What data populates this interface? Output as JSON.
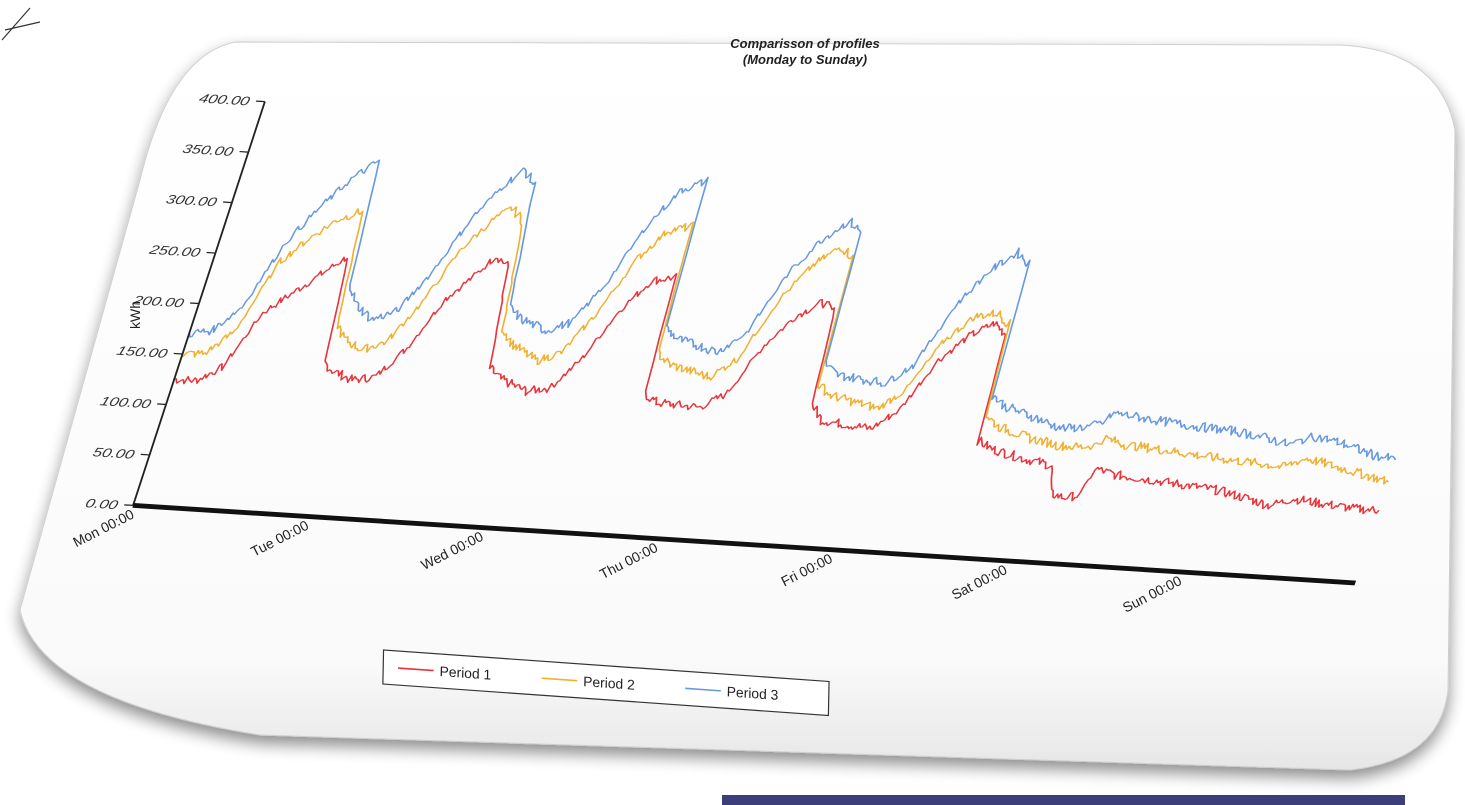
{
  "chart_data": {
    "type": "line",
    "title": "Comparisson of profiles",
    "subtitle": "(Monday to Sunday)",
    "ylabel": "kWh",
    "xlabel": "",
    "ylim": [
      0,
      400
    ],
    "xlim": [
      0,
      168
    ],
    "x_unit": "hours from Mon 00:00",
    "y_ticks": [
      "0.00",
      "50.00",
      "100.00",
      "150.00",
      "200.00",
      "250.00",
      "300.00",
      "350.00",
      "400.00"
    ],
    "x_ticks": [
      "Mon 00:00",
      "Tue 00:00",
      "Wed 00:00",
      "Thu 00:00",
      "Fri 00:00",
      "Sat 00:00",
      "Sun 00:00"
    ],
    "legend_position": "bottom",
    "grid": false,
    "series": [
      {
        "name": "Period 1",
        "color": "#e8343a",
        "points": [
          [
            0,
            125
          ],
          [
            3,
            125
          ],
          [
            6,
            140
          ],
          [
            9,
            195
          ],
          [
            12,
            215
          ],
          [
            15,
            235
          ],
          [
            18,
            255
          ],
          [
            19.5,
            150
          ],
          [
            21,
            143
          ],
          [
            24,
            135
          ],
          [
            27,
            140
          ],
          [
            30,
            170
          ],
          [
            33,
            220
          ],
          [
            36,
            245
          ],
          [
            38,
            265
          ],
          [
            40,
            255
          ],
          [
            42,
            155
          ],
          [
            44,
            145
          ],
          [
            48,
            135
          ],
          [
            51,
            140
          ],
          [
            54,
            170
          ],
          [
            57,
            220
          ],
          [
            60,
            250
          ],
          [
            63,
            255
          ],
          [
            64,
            140
          ],
          [
            66,
            132
          ],
          [
            72,
            130
          ],
          [
            75,
            145
          ],
          [
            78,
            195
          ],
          [
            81,
            225
          ],
          [
            84,
            240
          ],
          [
            86,
            230
          ],
          [
            87,
            140
          ],
          [
            89,
            125
          ],
          [
            96,
            120
          ],
          [
            99,
            140
          ],
          [
            102,
            190
          ],
          [
            105,
            215
          ],
          [
            108,
            230
          ],
          [
            110,
            220
          ],
          [
            111,
            115
          ],
          [
            113,
            108
          ],
          [
            118,
            100
          ],
          [
            120,
            98
          ],
          [
            122,
            95
          ],
          [
            123,
            68
          ],
          [
            125,
            65
          ],
          [
            127,
            68
          ],
          [
            128,
            95
          ],
          [
            131,
            90
          ],
          [
            135,
            88
          ],
          [
            140,
            85
          ],
          [
            145,
            82
          ],
          [
            150,
            75
          ],
          [
            153,
            70
          ],
          [
            156,
            78
          ],
          [
            160,
            75
          ],
          [
            165,
            72
          ],
          [
            168,
            72
          ]
        ]
      },
      {
        "name": "Period 2",
        "color": "#f0b030",
        "points": [
          [
            0,
            150
          ],
          [
            3,
            152
          ],
          [
            6,
            175
          ],
          [
            9,
            245
          ],
          [
            12,
            270
          ],
          [
            15,
            290
          ],
          [
            18,
            300
          ],
          [
            19.5,
            190
          ],
          [
            21,
            175
          ],
          [
            24,
            165
          ],
          [
            27,
            175
          ],
          [
            30,
            215
          ],
          [
            33,
            270
          ],
          [
            36,
            300
          ],
          [
            38,
            312
          ],
          [
            40,
            300
          ],
          [
            42,
            195
          ],
          [
            44,
            180
          ],
          [
            48,
            165
          ],
          [
            51,
            175
          ],
          [
            54,
            215
          ],
          [
            57,
            270
          ],
          [
            60,
            300
          ],
          [
            63,
            305
          ],
          [
            64,
            180
          ],
          [
            66,
            170
          ],
          [
            72,
            160
          ],
          [
            75,
            180
          ],
          [
            78,
            240
          ],
          [
            81,
            275
          ],
          [
            84,
            295
          ],
          [
            86,
            285
          ],
          [
            87,
            160
          ],
          [
            89,
            150
          ],
          [
            96,
            140
          ],
          [
            99,
            160
          ],
          [
            102,
            210
          ],
          [
            105,
            235
          ],
          [
            108,
            240
          ],
          [
            110,
            230
          ],
          [
            111,
            140
          ],
          [
            113,
            130
          ],
          [
            118,
            120
          ],
          [
            120,
            118
          ],
          [
            122,
            115
          ],
          [
            125,
            115
          ],
          [
            127,
            118
          ],
          [
            128,
            125
          ],
          [
            131,
            120
          ],
          [
            135,
            118
          ],
          [
            140,
            115
          ],
          [
            145,
            112
          ],
          [
            150,
            110
          ],
          [
            153,
            108
          ],
          [
            156,
            118
          ],
          [
            160,
            112
          ],
          [
            165,
            105
          ],
          [
            168,
            100
          ]
        ]
      },
      {
        "name": "Period 3",
        "color": "#6699e0",
        "points": [
          [
            0,
            170
          ],
          [
            3,
            175
          ],
          [
            6,
            200
          ],
          [
            9,
            265
          ],
          [
            12,
            300
          ],
          [
            15,
            330
          ],
          [
            18,
            350
          ],
          [
            19.5,
            230
          ],
          [
            21,
            210
          ],
          [
            24,
            195
          ],
          [
            27,
            205
          ],
          [
            30,
            245
          ],
          [
            33,
            300
          ],
          [
            36,
            335
          ],
          [
            38,
            350
          ],
          [
            40,
            335
          ],
          [
            42,
            215
          ],
          [
            44,
            205
          ],
          [
            48,
            195
          ],
          [
            51,
            205
          ],
          [
            54,
            245
          ],
          [
            57,
            305
          ],
          [
            60,
            340
          ],
          [
            63,
            350
          ],
          [
            64,
            205
          ],
          [
            66,
            195
          ],
          [
            72,
            185
          ],
          [
            75,
            205
          ],
          [
            78,
            265
          ],
          [
            81,
            300
          ],
          [
            84,
            320
          ],
          [
            86,
            310
          ],
          [
            87,
            180
          ],
          [
            89,
            170
          ],
          [
            96,
            165
          ],
          [
            99,
            185
          ],
          [
            102,
            245
          ],
          [
            105,
            280
          ],
          [
            108,
            300
          ],
          [
            110,
            290
          ],
          [
            111,
            160
          ],
          [
            113,
            150
          ],
          [
            118,
            140
          ],
          [
            120,
            135
          ],
          [
            122,
            132
          ],
          [
            125,
            135
          ],
          [
            127,
            140
          ],
          [
            128,
            150
          ],
          [
            131,
            148
          ],
          [
            135,
            145
          ],
          [
            140,
            142
          ],
          [
            145,
            140
          ],
          [
            150,
            135
          ],
          [
            153,
            130
          ],
          [
            156,
            140
          ],
          [
            160,
            135
          ],
          [
            165,
            125
          ],
          [
            168,
            122
          ]
        ]
      }
    ]
  }
}
